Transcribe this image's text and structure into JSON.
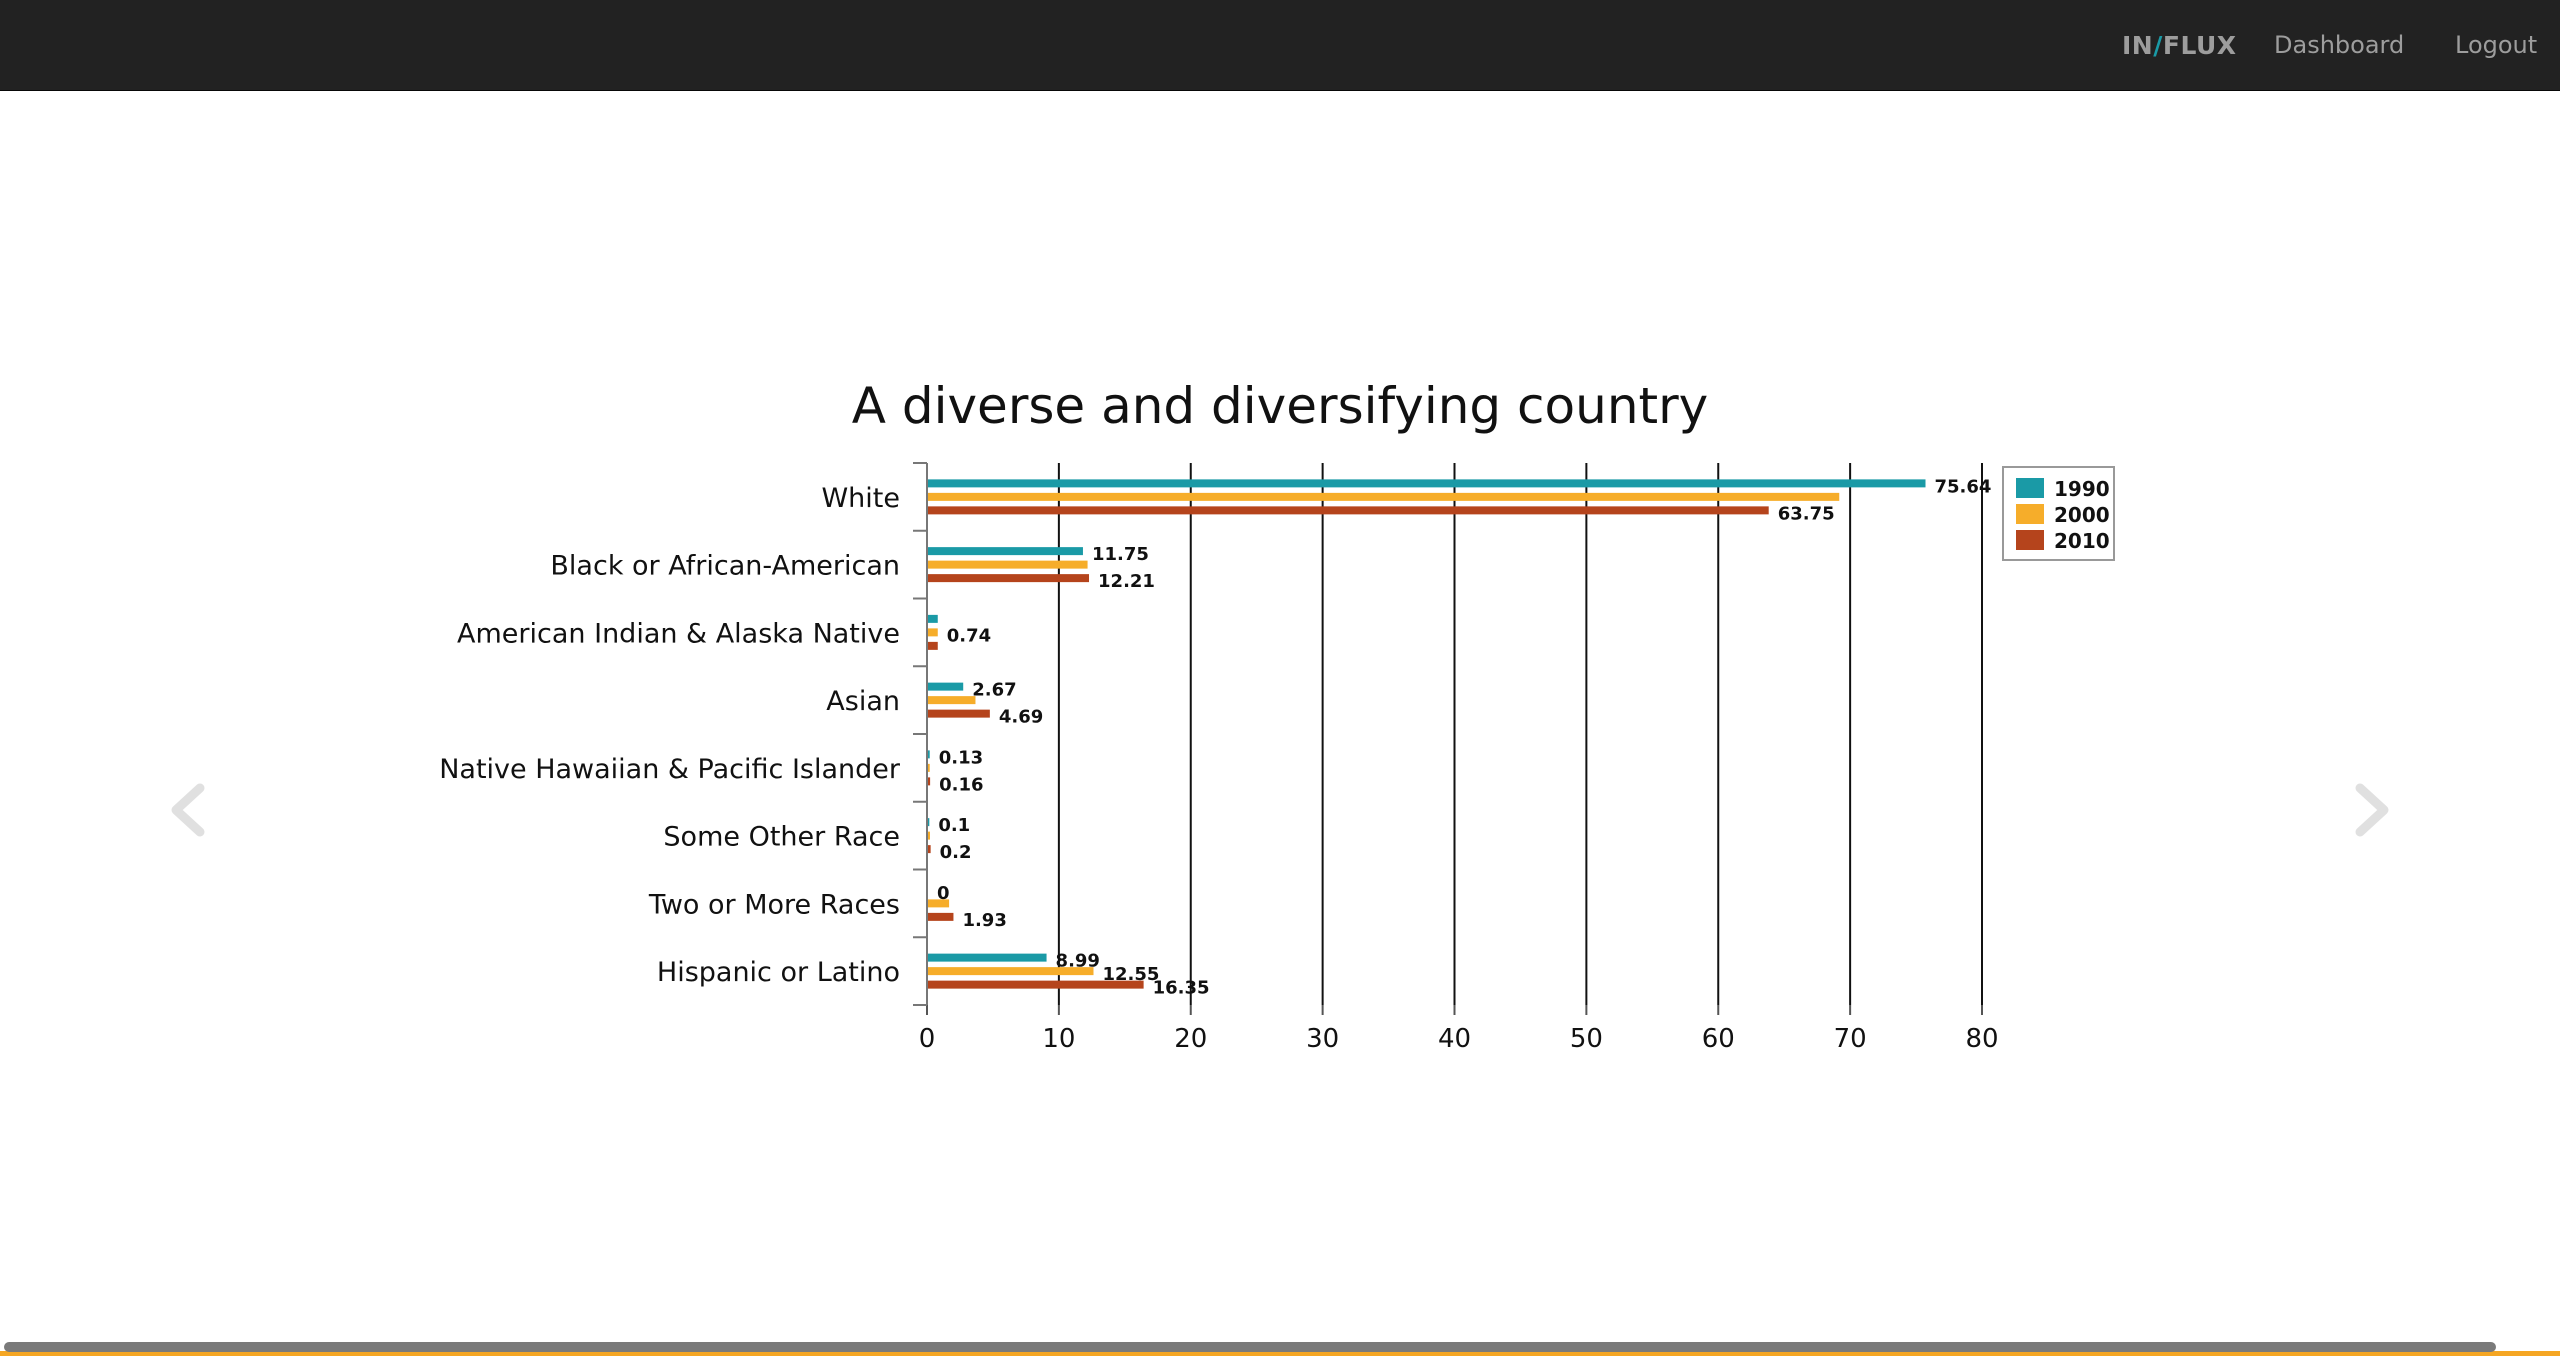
{
  "navbar": {
    "brand_left": "IN",
    "brand_slash": "/",
    "brand_right": "FLUX",
    "dashboard": "Dashboard",
    "logout": "Logout"
  },
  "carousel": {
    "prev_icon": "chevron-left-icon",
    "next_icon": "chevron-right-icon"
  },
  "colors": {
    "navbar_bg": "#222222",
    "series_1990": "#1a9aa6",
    "series_2000": "#f6ad2a",
    "series_2010": "#b5441c",
    "accent": "#f5a623"
  },
  "chart_data": {
    "type": "bar",
    "orientation": "horizontal",
    "title": "A diverse and diversifying country",
    "categories": [
      "White",
      "Black or African-American",
      "American Indian & Alaska Native",
      "Asian",
      "Native Hawaiian & Pacific Islander",
      "Some Other Race",
      "Two or More Races",
      "Hispanic or Latino"
    ],
    "series": [
      {
        "name": "1990",
        "color": "#1a9aa6",
        "values": [
          75.64,
          11.75,
          0.74,
          2.67,
          0.13,
          0.1,
          0,
          8.99
        ],
        "labels": [
          "75.64",
          "11.75",
          "",
          "2.67",
          "0.13",
          "0.1",
          "0",
          "8.99"
        ]
      },
      {
        "name": "2000",
        "color": "#f6ad2a",
        "values": [
          69.1,
          12.1,
          0.74,
          3.6,
          0.13,
          0.15,
          1.6,
          12.55
        ],
        "labels": [
          "",
          "",
          "0.74",
          "",
          "",
          "",
          "",
          "12.55"
        ]
      },
      {
        "name": "2010",
        "color": "#b5441c",
        "values": [
          63.75,
          12.21,
          0.74,
          4.69,
          0.16,
          0.2,
          1.93,
          16.35
        ],
        "labels": [
          "63.75",
          "12.21",
          "",
          "4.69",
          "0.16",
          "0.2",
          "1.93",
          "16.35"
        ]
      }
    ],
    "xlim": [
      0,
      80
    ],
    "xticks": [
      0,
      10,
      20,
      30,
      40,
      50,
      60,
      70,
      80
    ],
    "grid": true,
    "legend_position": "top-right"
  }
}
